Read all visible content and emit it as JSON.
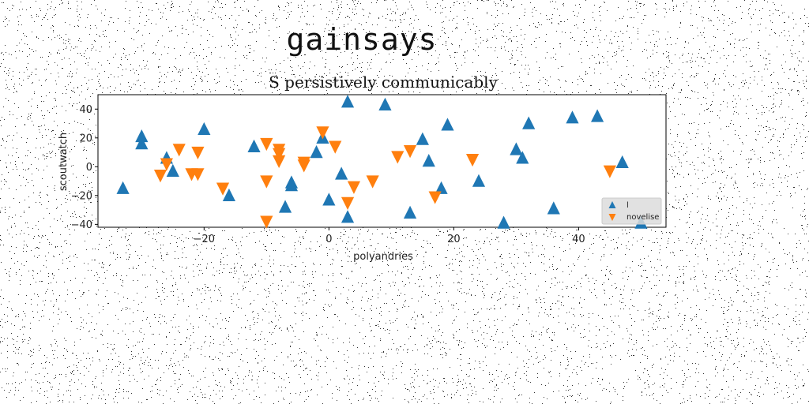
{
  "suptitle": "gainsays",
  "chart_data": {
    "type": "scatter",
    "title": "S persistively communicably",
    "xlabel": "polyandries",
    "ylabel": "scoutwatch",
    "xlim": [
      -37,
      54
    ],
    "ylim": [
      -42,
      50
    ],
    "xticks": [
      -20,
      0,
      20,
      40
    ],
    "yticks": [
      -40,
      -20,
      0,
      20,
      40
    ],
    "grid": false,
    "legend": {
      "placement": "lower-right"
    },
    "series": [
      {
        "name": "l",
        "marker": "triangle-up",
        "color": "#1f77b4",
        "points": [
          [
            -33,
            -15
          ],
          [
            -30,
            21
          ],
          [
            -30,
            16
          ],
          [
            -26,
            6
          ],
          [
            -25,
            -3
          ],
          [
            -20,
            26
          ],
          [
            -16,
            -20
          ],
          [
            -12,
            14
          ],
          [
            -7,
            -28
          ],
          [
            -6,
            -13
          ],
          [
            -6,
            -11
          ],
          [
            -2,
            10
          ],
          [
            -1,
            20
          ],
          [
            0,
            -23
          ],
          [
            2,
            -5
          ],
          [
            3,
            45
          ],
          [
            3,
            -35
          ],
          [
            9,
            43
          ],
          [
            13,
            -32
          ],
          [
            15,
            19
          ],
          [
            16,
            4
          ],
          [
            18,
            -15
          ],
          [
            19,
            29
          ],
          [
            24,
            -10
          ],
          [
            28,
            -39
          ],
          [
            30,
            12
          ],
          [
            31,
            6
          ],
          [
            32,
            30
          ],
          [
            36,
            -29
          ],
          [
            39,
            34
          ],
          [
            43,
            35
          ],
          [
            47,
            3
          ],
          [
            50,
            -39
          ]
        ]
      },
      {
        "name": "novelise",
        "marker": "triangle-down",
        "color": "#ff7f0e",
        "points": [
          [
            -27,
            -6
          ],
          [
            -26,
            2
          ],
          [
            -24,
            12
          ],
          [
            -22,
            -5
          ],
          [
            -21,
            -5
          ],
          [
            -21,
            10
          ],
          [
            -17,
            -15
          ],
          [
            -10,
            -10
          ],
          [
            -10,
            -38
          ],
          [
            -10,
            16
          ],
          [
            -8,
            12
          ],
          [
            -8,
            9
          ],
          [
            -8,
            4
          ],
          [
            -4,
            1
          ],
          [
            -4,
            3
          ],
          [
            -1,
            24
          ],
          [
            1,
            14
          ],
          [
            3,
            -25
          ],
          [
            4,
            -14
          ],
          [
            7,
            -10
          ],
          [
            11,
            7
          ],
          [
            13,
            11
          ],
          [
            17,
            -21
          ],
          [
            23,
            5
          ],
          [
            45,
            -3
          ]
        ]
      }
    ]
  }
}
